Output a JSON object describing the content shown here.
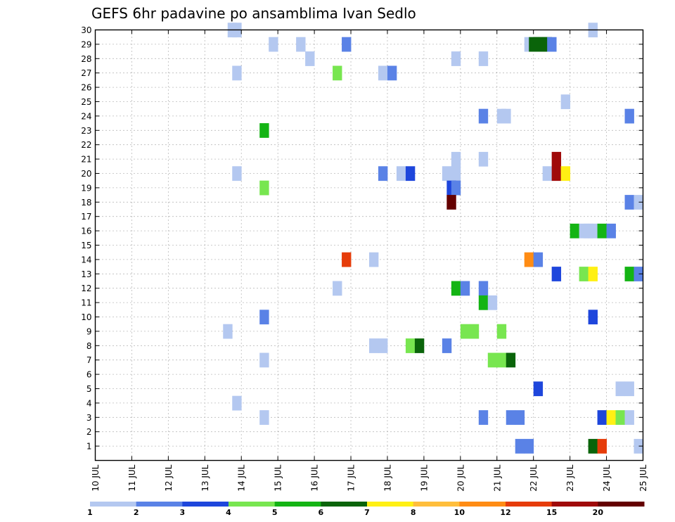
{
  "chart_data": {
    "type": "heatmap",
    "title": "GEFS 6hr padavine po ansamblima Ivan Sedlo",
    "x_tick_labels": [
      "10 JUL",
      "11 JUL",
      "12 JUL",
      "13 JUL",
      "14 JUL",
      "15 JUL",
      "16 JUL",
      "17 JUL",
      "18 JUL",
      "19 JUL",
      "20 JUL",
      "21 JUL",
      "22 JUL",
      "23 JUL",
      "24 JUL",
      "25 JUL"
    ],
    "x_range_days": [
      10,
      25
    ],
    "y_tick_labels": [
      "1",
      "2",
      "3",
      "4",
      "5",
      "6",
      "7",
      "8",
      "9",
      "10",
      "11",
      "12",
      "13",
      "14",
      "15",
      "16",
      "17",
      "18",
      "19",
      "20",
      "21",
      "22",
      "23",
      "24",
      "25",
      "26",
      "27",
      "28",
      "29",
      "30"
    ],
    "y_range": [
      0,
      30
    ],
    "grid": true,
    "colorbar": {
      "colors": [
        "#b4c8f0",
        "#5a82e6",
        "#1e46dc",
        "#78e650",
        "#14b414",
        "#0a640a",
        "#fff014",
        "#ffbe3c",
        "#ff8c14",
        "#e63c0a",
        "#a00a0a",
        "#640000"
      ],
      "labels": [
        "1",
        "2",
        "3",
        "4",
        "5",
        "6",
        "7",
        "8",
        "10",
        "12",
        "15",
        "20"
      ]
    },
    "cells": [
      {
        "d": 13.75,
        "m": 30,
        "c": 0
      },
      {
        "d": 13.875,
        "m": 30,
        "c": 0
      },
      {
        "d": 23.625,
        "m": 30,
        "c": 0
      },
      {
        "d": 14.875,
        "m": 29,
        "c": 0
      },
      {
        "d": 15.625,
        "m": 29,
        "c": 0
      },
      {
        "d": 16.875,
        "m": 29,
        "c": 1
      },
      {
        "d": 21.875,
        "m": 29,
        "c": 0
      },
      {
        "d": 22.0,
        "m": 29,
        "c": 5
      },
      {
        "d": 22.125,
        "m": 29,
        "c": 5
      },
      {
        "d": 22.25,
        "m": 29,
        "c": 5
      },
      {
        "d": 22.375,
        "m": 29,
        "c": 5
      },
      {
        "d": 22.5,
        "m": 29,
        "c": 1
      },
      {
        "d": 15.875,
        "m": 28,
        "c": 0
      },
      {
        "d": 19.875,
        "m": 28,
        "c": 0
      },
      {
        "d": 20.625,
        "m": 28,
        "c": 0
      },
      {
        "d": 13.875,
        "m": 27,
        "c": 0
      },
      {
        "d": 16.625,
        "m": 27,
        "c": 3
      },
      {
        "d": 17.875,
        "m": 27,
        "c": 0
      },
      {
        "d": 18.125,
        "m": 27,
        "c": 1
      },
      {
        "d": 22.875,
        "m": 25,
        "c": 0
      },
      {
        "d": 20.625,
        "m": 24,
        "c": 1
      },
      {
        "d": 21.125,
        "m": 24,
        "c": 0
      },
      {
        "d": 21.25,
        "m": 24,
        "c": 0
      },
      {
        "d": 24.625,
        "m": 24,
        "c": 1
      },
      {
        "d": 14.625,
        "m": 23,
        "c": 4
      },
      {
        "d": 19.875,
        "m": 21,
        "c": 0
      },
      {
        "d": 20.625,
        "m": 21,
        "c": 0
      },
      {
        "d": 22.625,
        "m": 21,
        "c": 10
      },
      {
        "d": 13.875,
        "m": 20,
        "c": 0
      },
      {
        "d": 17.875,
        "m": 20,
        "c": 1
      },
      {
        "d": 18.375,
        "m": 20,
        "c": 0
      },
      {
        "d": 18.625,
        "m": 20,
        "c": 2
      },
      {
        "d": 19.625,
        "m": 20,
        "c": 0
      },
      {
        "d": 19.875,
        "m": 20,
        "c": 0
      },
      {
        "d": 22.375,
        "m": 20,
        "c": 0
      },
      {
        "d": 22.625,
        "m": 20,
        "c": 10
      },
      {
        "d": 22.875,
        "m": 20,
        "c": 6
      },
      {
        "d": 14.625,
        "m": 19,
        "c": 3
      },
      {
        "d": 19.75,
        "m": 19,
        "c": 2
      },
      {
        "d": 19.875,
        "m": 19,
        "c": 1
      },
      {
        "d": 19.75,
        "m": 18,
        "c": 11
      },
      {
        "d": 24.625,
        "m": 18,
        "c": 1
      },
      {
        "d": 24.875,
        "m": 18,
        "c": 0
      },
      {
        "d": 23.125,
        "m": 16,
        "c": 4
      },
      {
        "d": 23.375,
        "m": 16,
        "c": 0
      },
      {
        "d": 23.5,
        "m": 16,
        "c": 0
      },
      {
        "d": 23.625,
        "m": 16,
        "c": 0
      },
      {
        "d": 23.875,
        "m": 16,
        "c": 4
      },
      {
        "d": 24.125,
        "m": 16,
        "c": 1
      },
      {
        "d": 16.875,
        "m": 14,
        "c": 9
      },
      {
        "d": 17.625,
        "m": 14,
        "c": 0
      },
      {
        "d": 21.875,
        "m": 14,
        "c": 8
      },
      {
        "d": 22.125,
        "m": 14,
        "c": 1
      },
      {
        "d": 22.625,
        "m": 13,
        "c": 2
      },
      {
        "d": 23.375,
        "m": 13,
        "c": 3
      },
      {
        "d": 23.625,
        "m": 13,
        "c": 6
      },
      {
        "d": 24.625,
        "m": 13,
        "c": 4
      },
      {
        "d": 24.875,
        "m": 13,
        "c": 1
      },
      {
        "d": 16.625,
        "m": 12,
        "c": 0
      },
      {
        "d": 19.875,
        "m": 12,
        "c": 4
      },
      {
        "d": 20.125,
        "m": 12,
        "c": 1
      },
      {
        "d": 20.625,
        "m": 12,
        "c": 1
      },
      {
        "d": 20.625,
        "m": 11,
        "c": 4
      },
      {
        "d": 20.875,
        "m": 11,
        "c": 0
      },
      {
        "d": 14.625,
        "m": 10,
        "c": 1
      },
      {
        "d": 23.625,
        "m": 10,
        "c": 2
      },
      {
        "d": 13.625,
        "m": 9,
        "c": 0
      },
      {
        "d": 20.125,
        "m": 9,
        "c": 3
      },
      {
        "d": 20.375,
        "m": 9,
        "c": 3
      },
      {
        "d": 21.125,
        "m": 9,
        "c": 3
      },
      {
        "d": 17.625,
        "m": 8,
        "c": 0
      },
      {
        "d": 17.875,
        "m": 8,
        "c": 0
      },
      {
        "d": 18.625,
        "m": 8,
        "c": 3
      },
      {
        "d": 18.875,
        "m": 8,
        "c": 5
      },
      {
        "d": 19.625,
        "m": 8,
        "c": 1
      },
      {
        "d": 14.625,
        "m": 7,
        "c": 0
      },
      {
        "d": 20.875,
        "m": 7,
        "c": 3
      },
      {
        "d": 21.125,
        "m": 7,
        "c": 3
      },
      {
        "d": 21.375,
        "m": 7,
        "c": 5
      },
      {
        "d": 22.125,
        "m": 5,
        "c": 2
      },
      {
        "d": 24.375,
        "m": 5,
        "c": 0
      },
      {
        "d": 24.625,
        "m": 5,
        "c": 0
      },
      {
        "d": 13.875,
        "m": 4,
        "c": 0
      },
      {
        "d": 14.625,
        "m": 3,
        "c": 0
      },
      {
        "d": 20.625,
        "m": 3,
        "c": 1
      },
      {
        "d": 21.375,
        "m": 3,
        "c": 1
      },
      {
        "d": 21.625,
        "m": 3,
        "c": 1
      },
      {
        "d": 23.875,
        "m": 3,
        "c": 2
      },
      {
        "d": 24.125,
        "m": 3,
        "c": 6
      },
      {
        "d": 24.375,
        "m": 3,
        "c": 3
      },
      {
        "d": 24.625,
        "m": 3,
        "c": 0
      },
      {
        "d": 21.625,
        "m": 1,
        "c": 1
      },
      {
        "d": 21.875,
        "m": 1,
        "c": 1
      },
      {
        "d": 23.625,
        "m": 1,
        "c": 5
      },
      {
        "d": 23.875,
        "m": 1,
        "c": 9
      },
      {
        "d": 24.875,
        "m": 1,
        "c": 0
      }
    ]
  }
}
